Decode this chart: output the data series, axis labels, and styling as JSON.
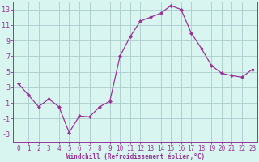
{
  "x": [
    0,
    1,
    2,
    3,
    4,
    5,
    6,
    7,
    8,
    9,
    10,
    11,
    12,
    13,
    14,
    15,
    16,
    17,
    18,
    19,
    20,
    21,
    22,
    23
  ],
  "y": [
    3.5,
    2.0,
    0.5,
    1.5,
    0.5,
    -2.8,
    -0.7,
    -0.8,
    0.5,
    1.2,
    7.0,
    9.5,
    11.5,
    12.0,
    12.5,
    13.5,
    13.0,
    10.0,
    8.0,
    5.8,
    4.8,
    4.5,
    4.3,
    5.3
  ],
  "line_color": "#993399",
  "marker": "D",
  "marker_size": 2,
  "bg_color": "#d8f5f0",
  "grid_color": "#aacccc",
  "axis_color": "#993399",
  "xlabel": "Windchill (Refroidissement éolien,°C)",
  "ylabel": "",
  "xlim": [
    -0.5,
    23.5
  ],
  "ylim": [
    -4,
    14
  ],
  "yticks": [
    -3,
    -1,
    1,
    3,
    5,
    7,
    9,
    11,
    13
  ],
  "xticks": [
    0,
    1,
    2,
    3,
    4,
    5,
    6,
    7,
    8,
    9,
    10,
    11,
    12,
    13,
    14,
    15,
    16,
    17,
    18,
    19,
    20,
    21,
    22,
    23
  ],
  "tick_fontsize": 5.5,
  "xlabel_fontsize": 5.5
}
